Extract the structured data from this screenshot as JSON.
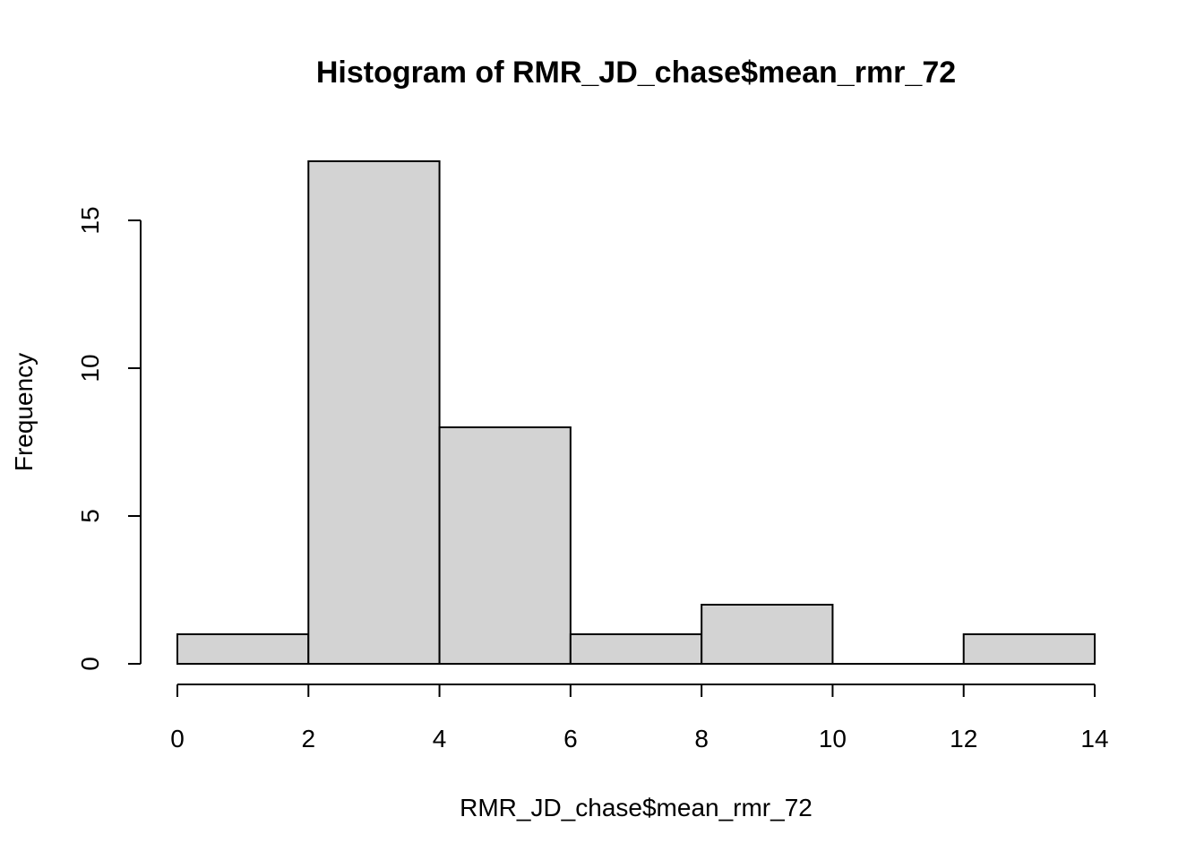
{
  "chart_data": {
    "type": "bar",
    "title": "Histogram of RMR_JD_chase$mean_rmr_72",
    "xlabel": "RMR_JD_chase$mean_rmr_72",
    "ylabel": "Frequency",
    "bins": [
      {
        "start": 0,
        "end": 2,
        "count": 1
      },
      {
        "start": 2,
        "end": 4,
        "count": 17
      },
      {
        "start": 4,
        "end": 6,
        "count": 8
      },
      {
        "start": 6,
        "end": 8,
        "count": 1
      },
      {
        "start": 8,
        "end": 10,
        "count": 2
      },
      {
        "start": 10,
        "end": 12,
        "count": 0
      },
      {
        "start": 12,
        "end": 14,
        "count": 1
      }
    ],
    "x_ticks": [
      "0",
      "2",
      "4",
      "6",
      "8",
      "10",
      "12",
      "14"
    ],
    "y_ticks": [
      "0",
      "5",
      "10",
      "15"
    ],
    "xlim": [
      0,
      14
    ],
    "ylim": [
      0,
      17
    ],
    "grid": false,
    "bar_color": "#d3d3d3"
  }
}
